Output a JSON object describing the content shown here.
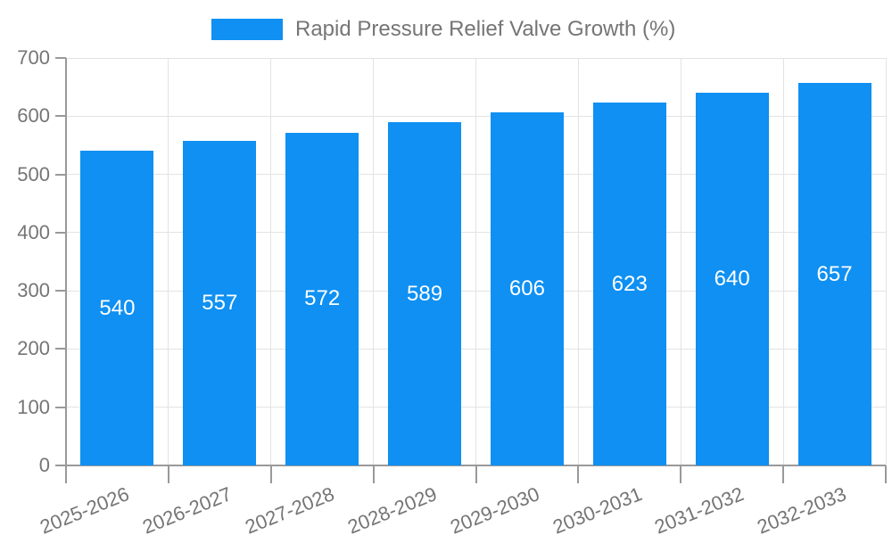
{
  "colors": {
    "bar": "#0f90f2",
    "axis": "#999999",
    "grid": "#e3e3e3",
    "tick_label": "#757575",
    "legend_label": "#757575",
    "value_label": "#ffffff",
    "background": "#ffffff"
  },
  "chart_data": {
    "type": "bar",
    "title": "",
    "legend": "Rapid Pressure Relief Valve Growth (%)",
    "legend_position": "top-center",
    "categories": [
      "2025-2026",
      "2026-2027",
      "2027-2028",
      "2028-2029",
      "2029-2030",
      "2030-2031",
      "2031-2032",
      "2032-2033"
    ],
    "values": [
      540,
      557,
      572,
      589,
      606,
      623,
      640,
      657
    ],
    "xlabel": "",
    "ylabel": "",
    "ylim": [
      0,
      700
    ],
    "yticks": [
      0,
      100,
      200,
      300,
      400,
      500,
      600,
      700
    ],
    "grid": true,
    "value_labels": "inside-center-white"
  }
}
